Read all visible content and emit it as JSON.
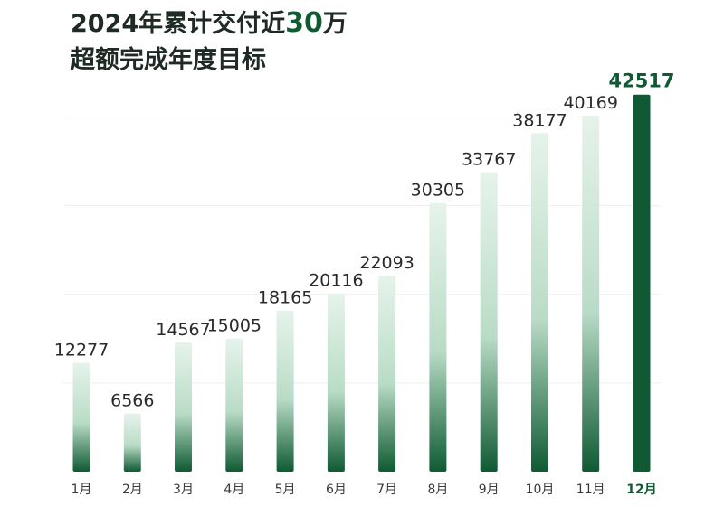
{
  "header": {
    "title_prefix": "2024年累计交付近",
    "title_highlight": "30",
    "title_suffix": "万",
    "subtitle": "超额完成年度目标"
  },
  "colors": {
    "bar_light": "#e6f3eb",
    "bar_dark": "#0f5a33",
    "bar_highlight": "#0f5a33",
    "label_text": "#2a2a2a",
    "highlight_text": "#0f5a33",
    "grid": "#eeeeee"
  },
  "chart_data": {
    "type": "bar",
    "categories": [
      "1月",
      "2月",
      "3月",
      "4月",
      "5月",
      "6月",
      "7月",
      "8月",
      "9月",
      "10月",
      "11月",
      "12月"
    ],
    "values": [
      12277,
      6566,
      14567,
      15005,
      18165,
      20116,
      22093,
      30305,
      33767,
      38177,
      40169,
      42517
    ],
    "highlight_index": 11,
    "ylim": [
      0,
      43000
    ],
    "grid": true,
    "xlabel": "",
    "ylabel": ""
  }
}
